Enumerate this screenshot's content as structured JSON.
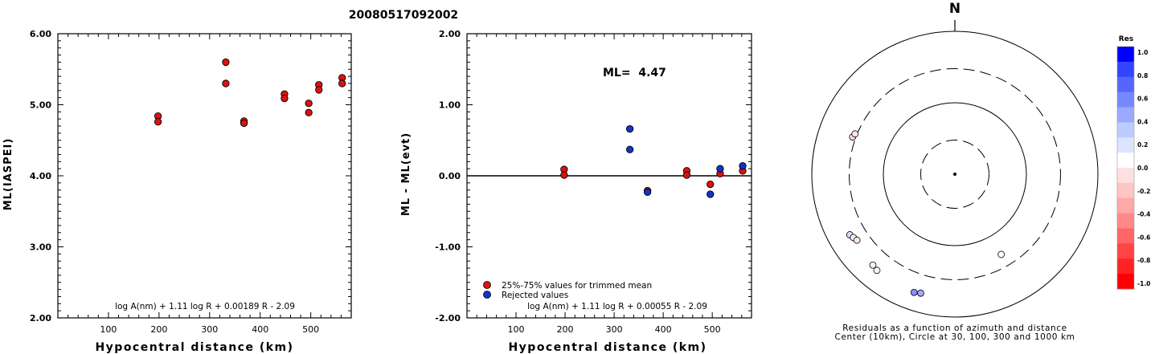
{
  "figure_title": "20080517092002",
  "chart_data": [
    {
      "type": "scatter",
      "xlabel": "Hypocentral distance (km)",
      "ylabel": "ML(IASPEI)",
      "xlim": [
        0,
        580
      ],
      "ylim": [
        2.0,
        6.0
      ],
      "x_ticks": [
        "100",
        "200",
        "300",
        "400",
        "500"
      ],
      "y_ticks": [
        "2.00",
        "3.00",
        "4.00",
        "5.00",
        "6.00"
      ],
      "formula": "log A(nm) + 1.11 log R + 0.00189 R - 2.09",
      "series": [
        {
          "color": "#dd1111",
          "points": [
            [
              198,
              4.84
            ],
            [
              198,
              4.76
            ],
            [
              332,
              5.6
            ],
            [
              332,
              5.3
            ],
            [
              368,
              4.77
            ],
            [
              368,
              4.74
            ],
            [
              448,
              5.15
            ],
            [
              448,
              5.09
            ],
            [
              496,
              5.02
            ],
            [
              496,
              4.89
            ],
            [
              516,
              5.28
            ],
            [
              516,
              5.21
            ],
            [
              562,
              5.38
            ],
            [
              562,
              5.3
            ]
          ]
        }
      ]
    },
    {
      "type": "scatter",
      "xlabel": "Hypocentral distance (km)",
      "ylabel": "ML - ML(evt)",
      "xlim": [
        0,
        580
      ],
      "ylim": [
        -2.0,
        2.0
      ],
      "x_ticks": [
        "100",
        "200",
        "300",
        "400",
        "500"
      ],
      "y_ticks": [
        "-2.00",
        "-1.00",
        "0.00",
        "1.00",
        "2.00"
      ],
      "annotation": "ML=  4.47",
      "zero_line": true,
      "legend": [
        {
          "label": "25%-75% values for trimmed mean",
          "color": "#dd1111"
        },
        {
          "label": "Rejected values",
          "color": "#1133cc"
        }
      ],
      "formula": "log A(nm) + 1.11 log R + 0.00055 R - 2.09",
      "series": [
        {
          "name": "25%-75% values for trimmed mean",
          "color": "#dd1111",
          "points": [
            [
              198,
              0.09
            ],
            [
              198,
              0.01
            ],
            [
              368,
              -0.21
            ],
            [
              448,
              0.07
            ],
            [
              448,
              0.01
            ],
            [
              496,
              -0.12
            ],
            [
              516,
              0.03
            ],
            [
              562,
              0.07
            ]
          ]
        },
        {
          "name": "Rejected values",
          "color": "#1133cc",
          "points": [
            [
              332,
              0.66
            ],
            [
              332,
              0.37
            ],
            [
              368,
              -0.23
            ],
            [
              496,
              -0.26
            ],
            [
              516,
              0.1
            ],
            [
              562,
              0.14
            ]
          ]
        }
      ]
    },
    {
      "type": "polar-scatter",
      "north_label": "N",
      "caption_line1": "Residuals as a function of azimuth and distance",
      "caption_line2": "Center (10km), Circle at 30, 100, 300 and 1000 km",
      "rings_km": [
        30,
        100,
        300,
        1000
      ],
      "colorbar": {
        "title": "Res",
        "ticks": [
          "1.0",
          "0.8",
          "0.6",
          "0.4",
          "0.2",
          "0.0",
          "-0.2",
          "-0.4",
          "-0.6",
          "-0.8",
          "-1.0"
        ],
        "colors": [
          "#0000ff",
          "#3344ff",
          "#5566ff",
          "#7788ff",
          "#99aaff",
          "#bbccff",
          "#dde4ff",
          "#ffffff",
          "#ffe0e0",
          "#ffc4c4",
          "#ffa8a8",
          "#ff8888",
          "#ff6666",
          "#ff4444",
          "#ff2222",
          "#ff0000"
        ]
      },
      "stations": [
        {
          "azimuth_deg": 290,
          "distance_km": 332,
          "residual": -0.15
        },
        {
          "azimuth_deg": 292,
          "distance_km": 320,
          "residual": -0.1
        },
        {
          "azimuth_deg": 240,
          "distance_km": 496,
          "residual": 0.15
        },
        {
          "azimuth_deg": 238,
          "distance_km": 470,
          "residual": -0.05
        },
        {
          "azimuth_deg": 236,
          "distance_km": 448,
          "residual": -0.1
        },
        {
          "azimuth_deg": 222,
          "distance_km": 516,
          "residual": 0.05
        },
        {
          "azimuth_deg": 219,
          "distance_km": 540,
          "residual": 0.03
        },
        {
          "azimuth_deg": 199,
          "distance_km": 562,
          "residual": 0.45
        },
        {
          "azimuth_deg": 196,
          "distance_km": 540,
          "residual": 0.35
        },
        {
          "azimuth_deg": 150,
          "distance_km": 198,
          "residual": 0.0
        }
      ]
    }
  ]
}
